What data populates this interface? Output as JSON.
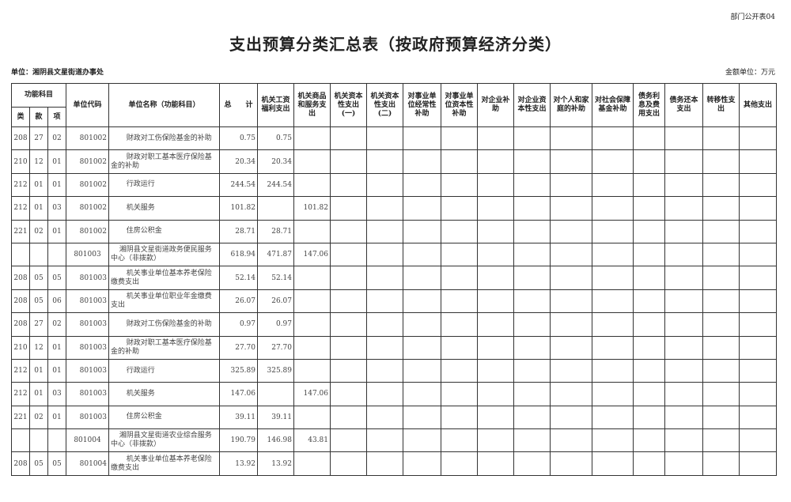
{
  "form_number": "部门公开表04",
  "title": "支出预算分类汇总表（按政府预算经济分类）",
  "unit_label": "单位：湘阴县文星街道办事处",
  "money_unit": "金额单位：万元",
  "table": {
    "group_header": "功能科目",
    "sub_headers": [
      "类",
      "款",
      "项"
    ],
    "headers": [
      "单位代码",
      "单位名称（功能科目）",
      "总　　计",
      "机关工资福利支出",
      "机关商品和服务支出",
      "机关资本性支出(一)",
      "机关资本性支出(二)",
      "对事业单位经常性补助",
      "对事业单位资本性补助",
      "对企业补助",
      "对企业资本性支出",
      "对个人和家庭的补助",
      "对社会保障基金补助",
      "债务利息及费用支出",
      "债务还本支出",
      "转移性支出",
      "其他支出"
    ],
    "rows": [
      [
        "208",
        "27",
        "02",
        "801002",
        "财政对工伤保险基金的补助",
        "0.75",
        "0.75",
        ""
      ],
      [
        "210",
        "12",
        "01",
        "801002",
        "财政对职工基本医疗保险基金的补助",
        "20.34",
        "20.34",
        ""
      ],
      [
        "212",
        "01",
        "01",
        "801002",
        "行政运行",
        "244.54",
        "244.54",
        ""
      ],
      [
        "212",
        "01",
        "03",
        "801002",
        "机关服务",
        "101.82",
        "",
        "101.82"
      ],
      [
        "221",
        "02",
        "01",
        "801002",
        "住房公积金",
        "28.71",
        "28.71",
        ""
      ],
      [
        "",
        "",
        "",
        "801003",
        "湘阴县文星街道政务便民服务中心（非拨款）",
        "618.94",
        "471.87",
        "147.06"
      ],
      [
        "208",
        "05",
        "05",
        "801003",
        "机关事业单位基本养老保险缴费支出",
        "52.14",
        "52.14",
        ""
      ],
      [
        "208",
        "05",
        "06",
        "801003",
        "机关事业单位职业年金缴费支出",
        "26.07",
        "26.07",
        ""
      ],
      [
        "208",
        "27",
        "02",
        "801003",
        "财政对工伤保险基金的补助",
        "0.97",
        "0.97",
        ""
      ],
      [
        "210",
        "12",
        "01",
        "801003",
        "财政对职工基本医疗保险基金的补助",
        "27.70",
        "27.70",
        ""
      ],
      [
        "212",
        "01",
        "01",
        "801003",
        "行政运行",
        "325.89",
        "325.89",
        ""
      ],
      [
        "212",
        "01",
        "03",
        "801003",
        "机关服务",
        "147.06",
        "",
        "147.06"
      ],
      [
        "221",
        "02",
        "01",
        "801003",
        "住房公积金",
        "39.11",
        "39.11",
        ""
      ],
      [
        "",
        "",
        "",
        "801004",
        "湘阴县文星街道农业综合服务中心（非拨款）",
        "190.79",
        "146.98",
        "43.81"
      ],
      [
        "208",
        "05",
        "05",
        "801004",
        "机关事业单位基本养老保险缴费支出",
        "13.92",
        "13.92",
        ""
      ]
    ]
  }
}
